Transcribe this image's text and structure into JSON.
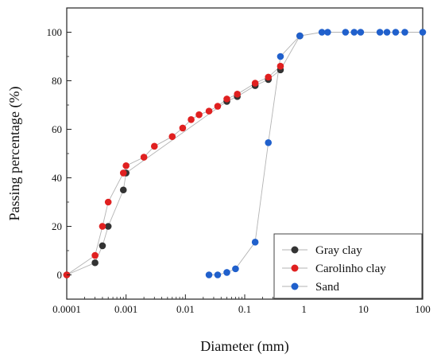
{
  "chart_data": {
    "type": "scatter",
    "title": "",
    "xlabel": "Diameter (mm)",
    "ylabel": "Passing percentage (%)",
    "x_scale": "log",
    "xlim": [
      0.0001,
      100
    ],
    "ylim": [
      -10,
      110
    ],
    "x_ticks": [
      {
        "value": 0.0001,
        "label": "0.0001"
      },
      {
        "value": 0.001,
        "label": "0.001"
      },
      {
        "value": 0.01,
        "label": "0.01"
      },
      {
        "value": 0.1,
        "label": "0.1"
      },
      {
        "value": 1,
        "label": "1"
      },
      {
        "value": 10,
        "label": "10"
      },
      {
        "value": 100,
        "label": "100"
      }
    ],
    "y_ticks": [
      {
        "value": 0,
        "label": "0"
      },
      {
        "value": 20,
        "label": "20"
      },
      {
        "value": 40,
        "label": "40"
      },
      {
        "value": 60,
        "label": "60"
      },
      {
        "value": 80,
        "label": "80"
      },
      {
        "value": 100,
        "label": "100"
      }
    ],
    "grid": false,
    "legend_position": "bottom-right",
    "connector_color": "#b3b3b3",
    "series": [
      {
        "name": "Gray clay",
        "color": "#333333",
        "x": [
          0.0001,
          0.0003,
          0.0004,
          0.0005,
          0.0009,
          0.001,
          0.05,
          0.075,
          0.15,
          0.25,
          0.4,
          0.85
        ],
        "y": [
          0,
          5,
          12,
          20,
          35,
          42,
          71.5,
          73.5,
          78,
          80.5,
          84.5,
          98.5
        ]
      },
      {
        "name": "Carolinho clay",
        "color": "#e02020",
        "x": [
          0.0001,
          0.0003,
          0.0004,
          0.0005,
          0.0009,
          0.001,
          0.002,
          0.003,
          0.006,
          0.009,
          0.0125,
          0.017,
          0.025,
          0.035,
          0.05,
          0.075,
          0.15,
          0.25,
          0.4
        ],
        "y": [
          0,
          8,
          20,
          30,
          42,
          45,
          48.5,
          53,
          57,
          60.5,
          64,
          66,
          67.5,
          69.5,
          72.5,
          74.5,
          79,
          81.5,
          86
        ]
      },
      {
        "name": "Sand",
        "color": "#2060cc",
        "x": [
          0.025,
          0.035,
          0.05,
          0.07,
          0.15,
          0.25,
          0.4,
          0.85,
          2,
          2.5,
          5,
          7,
          9,
          19,
          25,
          35,
          50,
          100
        ],
        "y": [
          0,
          0,
          1,
          2.5,
          13.5,
          54.5,
          90,
          98.5,
          100,
          100,
          100,
          100,
          100,
          100,
          100,
          100,
          100,
          100
        ]
      }
    ]
  }
}
